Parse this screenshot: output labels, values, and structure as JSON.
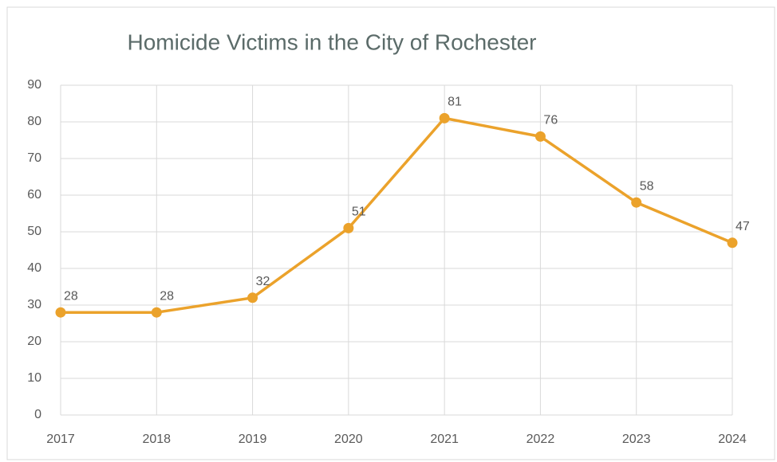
{
  "chart_data": {
    "type": "line",
    "title": "Homicide Victims in the City of Rochester",
    "categories": [
      "2017",
      "2018",
      "2019",
      "2020",
      "2021",
      "2022",
      "2023",
      "2024"
    ],
    "values": [
      28,
      28,
      32,
      51,
      81,
      76,
      58,
      47
    ],
    "color": "#eba22b",
    "ylim": [
      0,
      90
    ],
    "yticks": [
      0,
      10,
      20,
      30,
      40,
      50,
      60,
      70,
      80,
      90
    ],
    "grid": true
  }
}
